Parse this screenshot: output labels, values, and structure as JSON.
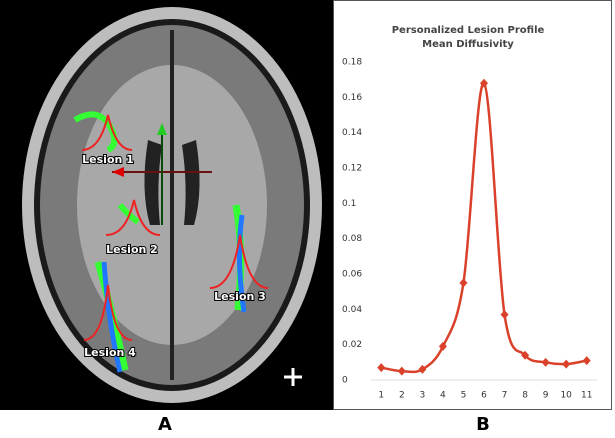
{
  "chart_data": {
    "type": "line",
    "title": "Personalized Lesion Profile",
    "subtitle": "Mean Diffusivity",
    "categories": [
      "1",
      "2",
      "3",
      "4",
      "5",
      "6",
      "7",
      "8",
      "9",
      "10",
      "11"
    ],
    "series": [
      {
        "name": "Mean Diffusivity",
        "color": "#d9412a",
        "values": [
          0.007,
          0.005,
          0.006,
          0.019,
          0.055,
          0.168,
          0.037,
          0.014,
          0.01,
          0.009,
          0.011
        ]
      }
    ],
    "ylim": [
      0,
      0.18
    ],
    "yticks": [
      0,
      0.02,
      0.04,
      0.06,
      0.08,
      0.1,
      0.12,
      0.14,
      0.16,
      0.18
    ],
    "grid": false,
    "smooth": true
  },
  "panel_a": {
    "label": "A",
    "annotations": [
      "Lesion 1",
      "Lesion 2",
      "Lesion 3",
      "Lesion 4"
    ]
  },
  "panel_b": {
    "label": "B"
  }
}
